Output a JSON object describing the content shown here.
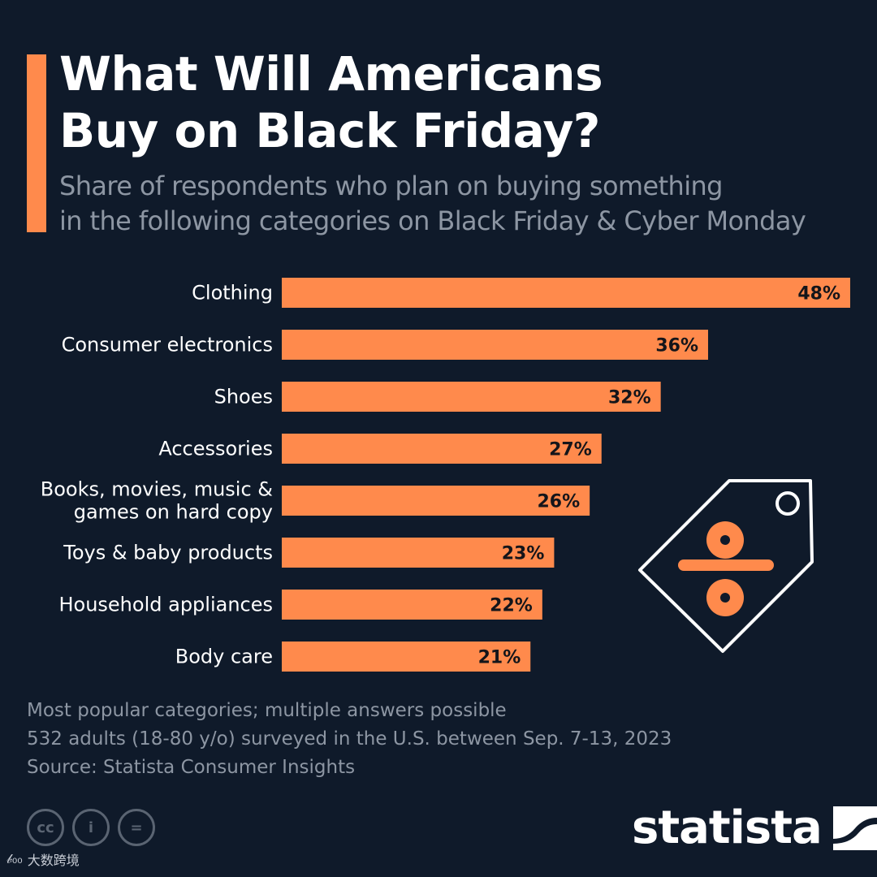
{
  "header": {
    "title_line1": "What Will Americans",
    "title_line2": "Buy on Black Friday?",
    "subtitle_line1": "Share of respondents who plan on buying something",
    "subtitle_line2": "in the following categories on Black Friday & Cyber Monday"
  },
  "colors": {
    "background": "#0f1a2a",
    "accent": "#ff8a4c",
    "muted_text": "#8d96a3"
  },
  "chart_data": {
    "type": "bar",
    "orientation": "horizontal",
    "title": "What Will Americans Buy on Black Friday?",
    "xlabel": "",
    "ylabel": "",
    "xlim": [
      0,
      48
    ],
    "grid": false,
    "categories": [
      [
        "Clothing"
      ],
      [
        "Consumer electronics"
      ],
      [
        "Shoes"
      ],
      [
        "Accessories"
      ],
      [
        "Books, movies, music &",
        "games on hard copy"
      ],
      [
        "Toys & baby products"
      ],
      [
        "Household appliances"
      ],
      [
        "Body care"
      ]
    ],
    "values": [
      48,
      36,
      32,
      27,
      26,
      23,
      22,
      21
    ],
    "value_labels": [
      "48%",
      "36%",
      "32%",
      "27%",
      "26%",
      "23%",
      "22%",
      "21%"
    ],
    "unit": "%"
  },
  "footer": {
    "note": "Most popular categories; multiple answers possible",
    "survey": "532 adults (18-80 y/o) surveyed in the U.S. between Sep. 7-13, 2023",
    "source": "Source: Statista Consumer Insights"
  },
  "license_icons": [
    {
      "name": "cc-icon",
      "glyph": "cc"
    },
    {
      "name": "attribution-icon",
      "glyph": "i"
    },
    {
      "name": "no-derivatives-icon",
      "glyph": "="
    }
  ],
  "brand": {
    "name": "statista"
  },
  "watermark": {
    "text": "大数跨境"
  }
}
